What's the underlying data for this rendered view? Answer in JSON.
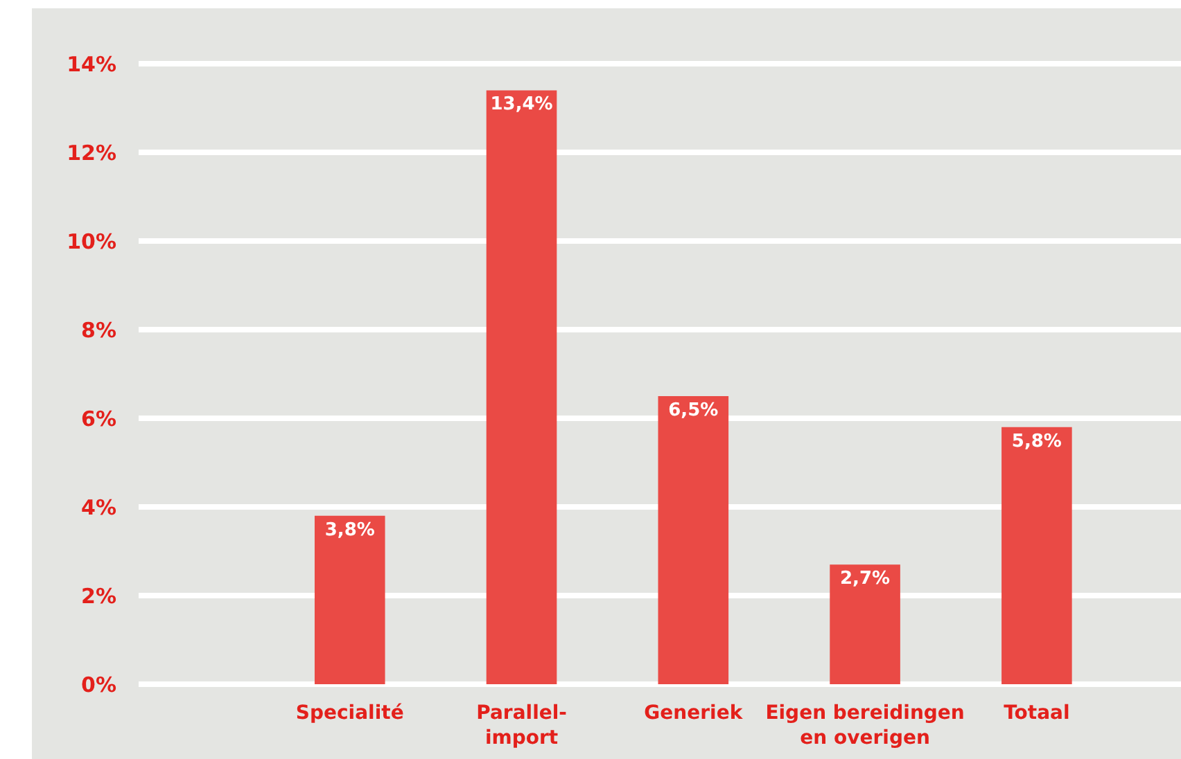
{
  "chart_data": {
    "type": "bar",
    "categories": [
      "Specialité",
      "Parallel-\nimport",
      "Generiek",
      "Eigen bereidingen\nen overigen",
      "Totaal"
    ],
    "values": [
      3.8,
      13.4,
      6.5,
      2.7,
      5.8
    ],
    "value_labels": [
      "3,8%",
      "13,4%",
      "6,5%",
      "2,7%",
      "5,8%"
    ],
    "color": "#ea4a45",
    "ylim": [
      0,
      14
    ],
    "yticks": [
      {
        "value": 0,
        "label": "0%"
      },
      {
        "value": 2,
        "label": "2%"
      },
      {
        "value": 4,
        "label": "4%"
      },
      {
        "value": 6,
        "label": "6%"
      },
      {
        "value": 8,
        "label": "8%"
      },
      {
        "value": 10,
        "label": "10%"
      },
      {
        "value": 12,
        "label": "12%"
      },
      {
        "value": 14,
        "label": "14%"
      }
    ],
    "grid": "y"
  }
}
